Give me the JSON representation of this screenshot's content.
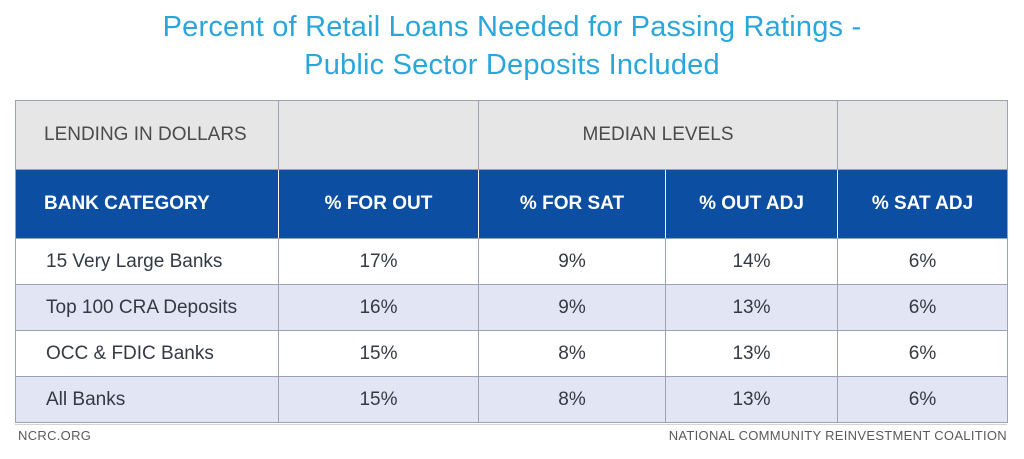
{
  "title": {
    "line1": "Percent of Retail Loans Needed for Passing Ratings -",
    "line2": "Public Sector Deposits Included"
  },
  "chart_data": {
    "type": "table",
    "title": "Percent of Retail Loans Needed for Passing Ratings - Public Sector Deposits Included",
    "top_header": {
      "left": "LENDING IN DOLLARS",
      "center": "MEDIAN LEVELS"
    },
    "columns": [
      "BANK CATEGORY",
      "% FOR OUT",
      "% FOR SAT",
      "% OUT ADJ",
      "% SAT ADJ"
    ],
    "rows": [
      {
        "category": "15 Very Large Banks",
        "values": [
          "17%",
          "9%",
          "14%",
          "6%"
        ]
      },
      {
        "category": "Top 100 CRA Deposits",
        "values": [
          "16%",
          "9%",
          "13%",
          "6%"
        ]
      },
      {
        "category": "OCC & FDIC Banks",
        "values": [
          "15%",
          "8%",
          "13%",
          "6%"
        ]
      },
      {
        "category": "All Banks",
        "values": [
          "15%",
          "8%",
          "13%",
          "6%"
        ]
      }
    ]
  },
  "footer": {
    "left": "NCRC.ORG",
    "right": "NATIONAL COMMUNITY REINVESTMENT COALITION"
  },
  "colors": {
    "title": "#2aa6db",
    "header_bg": "#0c4ea2",
    "top_bg": "#e6e6e6",
    "stripe_bg": "#e2e5f3"
  }
}
